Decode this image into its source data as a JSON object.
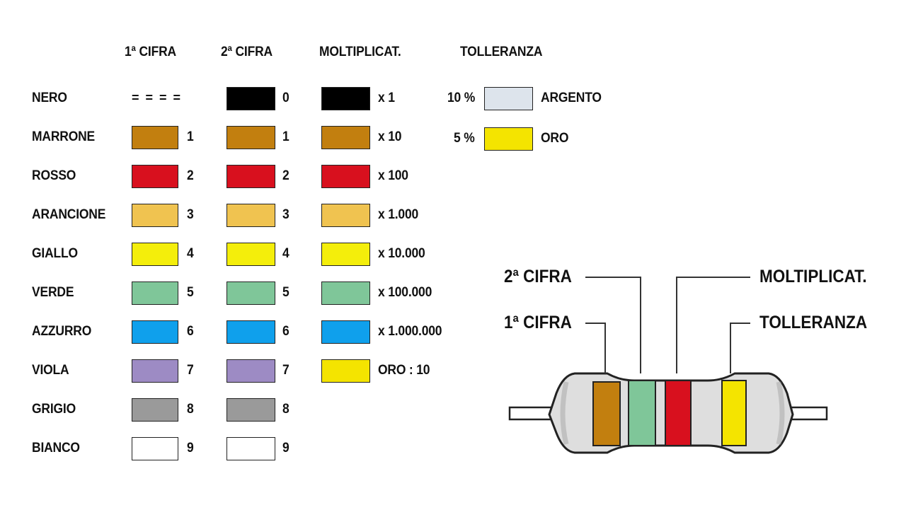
{
  "headers": {
    "first_digit": "1ª CIFRA",
    "second_digit": "2ª CIFRA",
    "multiplier": "MOLTIPLICAT.",
    "tolerance": "TOLLERANZA"
  },
  "rows": [
    {
      "name": "NERO",
      "color": "#000000",
      "digit1": "= = = =",
      "digit2": "0",
      "mult": "x 1"
    },
    {
      "name": "MARRONE",
      "color": "#c27f0f",
      "digit1": "1",
      "digit2": "1",
      "mult": "x 10"
    },
    {
      "name": "ROSSO",
      "color": "#d8101e",
      "digit1": "2",
      "digit2": "2",
      "mult": "x 100"
    },
    {
      "name": "ARANCIONE",
      "color": "#f0c350",
      "digit1": "3",
      "digit2": "3",
      "mult": "x 1.000"
    },
    {
      "name": "GIALLO",
      "color": "#f4ee0b",
      "digit1": "4",
      "digit2": "4",
      "mult": "x 10.000"
    },
    {
      "name": "VERDE",
      "color": "#7fc699",
      "digit1": "5",
      "digit2": "5",
      "mult": "x 100.000"
    },
    {
      "name": "AZZURRO",
      "color": "#0fa0ec",
      "digit1": "6",
      "digit2": "6",
      "mult": "x 1.000.000"
    },
    {
      "name": "VIOLA",
      "color": "#9d8bc4",
      "digit1": "7",
      "digit2": "7",
      "mult": "ORO : 10",
      "mult_color": "#f4e400"
    },
    {
      "name": "GRIGIO",
      "color": "#9a9a9a",
      "digit1": "8",
      "digit2": "8"
    },
    {
      "name": "BIANCO",
      "color": "#ffffff",
      "digit1": "9",
      "digit2": "9"
    }
  ],
  "tolerances": [
    {
      "value": "10 %",
      "color": "#dde4ec",
      "name": "ARGENTO"
    },
    {
      "value": "5 %",
      "color": "#f4e400",
      "name": "ORO"
    }
  ],
  "resistor": {
    "labels": {
      "second_digit": "2ª CIFRA",
      "multiplier": "MOLTIPLICAT.",
      "first_digit": "1ª CIFRA",
      "tolerance": "TOLLERANZA"
    },
    "body_color": "#dedede",
    "bands": [
      {
        "role": "first_digit",
        "color": "#c27f0f"
      },
      {
        "role": "second_digit",
        "color": "#7fc699"
      },
      {
        "role": "multiplier",
        "color": "#d8101e"
      },
      {
        "role": "tolerance",
        "color": "#f4e400"
      }
    ]
  }
}
